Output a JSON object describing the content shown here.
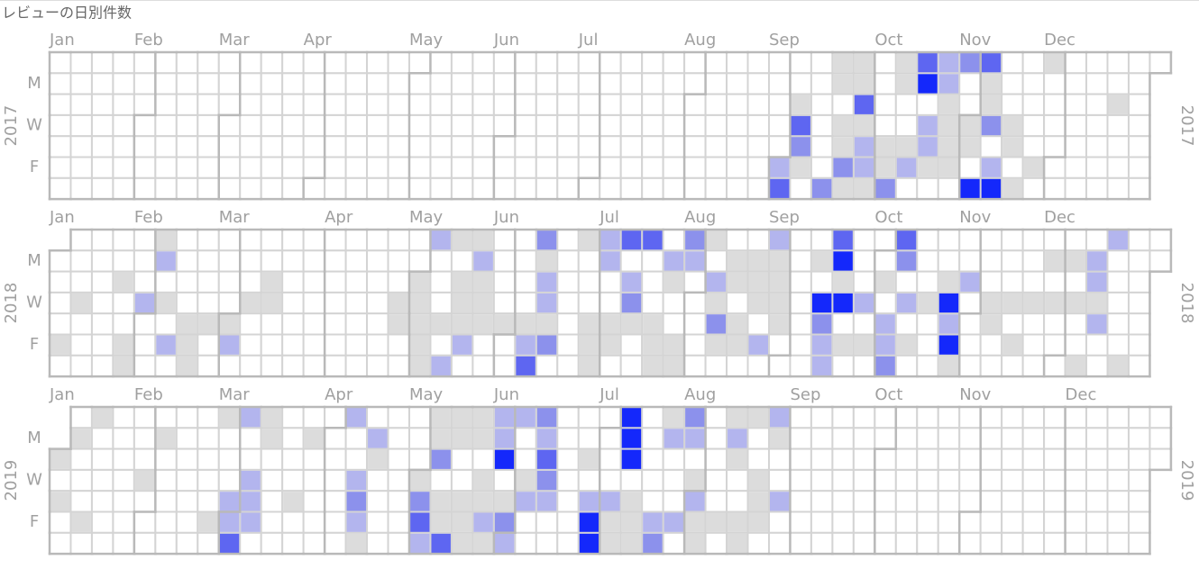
{
  "chart_data": {
    "type": "calendar-heatmap",
    "title": "レビューの日別件数",
    "months": [
      "Jan",
      "Feb",
      "Mar",
      "Apr",
      "May",
      "Jun",
      "Jul",
      "Aug",
      "Sep",
      "Oct",
      "Nov",
      "Dec"
    ],
    "weekday_labels": [
      "M",
      "W",
      "F"
    ],
    "colors": [
      "#dcdcdc",
      "#b3b5ee",
      "#8c91ec",
      "#5e66f1",
      "#1428fb"
    ],
    "series": [
      {
        "name": "2017",
        "x": [
          260,
          267,
          281,
          288,
          295,
          302,
          309,
          330,
          261,
          268,
          282,
          289,
          296,
          310,
          248,
          269,
          297,
          311,
          353,
          249,
          263,
          270,
          291,
          298,
          305,
          312,
          319,
          250,
          264,
          271,
          278,
          285,
          292,
          299,
          306,
          320,
          244,
          251,
          265,
          272,
          279,
          286,
          293,
          300,
          314,
          328,
          245,
          259,
          266,
          273,
          280,
          308,
          315,
          322
        ],
        "values": [
          1,
          1,
          1,
          4,
          2,
          3,
          4,
          1,
          1,
          1,
          1,
          5,
          2,
          1,
          1,
          4,
          1,
          1,
          1,
          4,
          1,
          1,
          2,
          1,
          1,
          3,
          1,
          3,
          1,
          2,
          1,
          1,
          2,
          1,
          1,
          1,
          2,
          1,
          3,
          2,
          1,
          2,
          1,
          1,
          2,
          1,
          4,
          3,
          1,
          1,
          3,
          5,
          5,
          1
        ]
      },
      {
        "name": "2018",
        "x": [
          35,
          126,
          133,
          140,
          161,
          175,
          182,
          189,
          196,
          210,
          217,
          238,
          259,
          280,
          350,
          36,
          141,
          162,
          183,
          204,
          211,
          225,
          232,
          239,
          253,
          260,
          281,
          330,
          337,
          344,
          23,
          72,
          121,
          135,
          142,
          163,
          191,
          205,
          219,
          226,
          233,
          240,
          261,
          275,
          296,
          303,
          345,
          10,
          31,
          38,
          66,
          73,
          115,
          122,
          136,
          143,
          164,
          192,
          220,
          234,
          241,
          255,
          262,
          269,
          283,
          290,
          297,
          311,
          318,
          325,
          332,
          339,
          346,
          46,
          53,
          60,
          116,
          123,
          130,
          137,
          144,
          151,
          158,
          165,
          179,
          186,
          193,
          200,
          221,
          228,
          242,
          256,
          277,
          298,
          312,
          347,
          5,
          26,
          40,
          47,
          61,
          124,
          138,
          159,
          166,
          180,
          187,
          201,
          208,
          222,
          229,
          236,
          257,
          264,
          271,
          278,
          285,
          299,
          320,
          27,
          48,
          125,
          132,
          160,
          181,
          202,
          209,
          258,
          279,
          300,
          342,
          356
        ],
        "values": [
          1,
          2,
          1,
          1,
          3,
          1,
          2,
          4,
          4,
          3,
          1,
          2,
          4,
          4,
          2,
          2,
          2,
          1,
          2,
          2,
          2,
          1,
          1,
          1,
          1,
          5,
          3,
          1,
          1,
          2,
          1,
          1,
          1,
          1,
          1,
          2,
          2,
          1,
          2,
          1,
          1,
          1,
          1,
          1,
          1,
          2,
          2,
          1,
          2,
          1,
          1,
          1,
          1,
          1,
          1,
          1,
          2,
          3,
          1,
          1,
          1,
          5,
          5,
          2,
          2,
          1,
          5,
          1,
          1,
          1,
          1,
          1,
          1,
          1,
          1,
          1,
          1,
          1,
          1,
          1,
          1,
          1,
          1,
          1,
          1,
          1,
          1,
          1,
          3,
          1,
          1,
          3,
          2,
          2,
          1,
          2,
          1,
          1,
          2,
          1,
          2,
          1,
          2,
          2,
          3,
          1,
          1,
          1,
          1,
          1,
          1,
          2,
          2,
          1,
          1,
          2,
          1,
          5,
          1,
          1,
          1,
          1,
          2,
          4,
          1,
          1,
          1,
          2,
          3,
          1,
          1,
          1
        ]
      },
      {
        "name": "2019",
        "x": [
          13,
          55,
          62,
          69,
          97,
          125,
          132,
          139,
          146,
          153,
          160,
          188,
          202,
          209,
          223,
          230,
          237,
          7,
          35,
          70,
          84,
          105,
          126,
          133,
          140,
          147,
          161,
          189,
          203,
          210,
          224,
          238,
          1,
          106,
          127,
          148,
          162,
          176,
          190,
          225,
          30,
          65,
          100,
          121,
          142,
          156,
          163,
          212,
          233,
          3,
          59,
          66,
          80,
          101,
          122,
          129,
          136,
          143,
          150,
          157,
          164,
          178,
          185,
          192,
          213,
          234,
          241,
          53,
          60,
          67,
          102,
          123,
          130,
          137,
          144,
          151,
          179,
          186,
          193,
          200,
          207,
          214,
          221,
          228,
          235,
          11,
          61,
          103,
          124,
          131,
          138,
          145,
          152,
          180,
          187,
          194,
          201,
          215,
          229
        ],
        "values": [
          1,
          1,
          2,
          1,
          2,
          1,
          1,
          1,
          2,
          2,
          3,
          5,
          1,
          3,
          1,
          1,
          2,
          1,
          1,
          1,
          1,
          2,
          1,
          1,
          1,
          2,
          2,
          5,
          2,
          2,
          2,
          1,
          1,
          1,
          3,
          5,
          4,
          1,
          5,
          1,
          1,
          2,
          2,
          1,
          1,
          1,
          3,
          1,
          1,
          1,
          2,
          2,
          1,
          3,
          3,
          1,
          1,
          1,
          1,
          2,
          2,
          2,
          2,
          1,
          2,
          1,
          2,
          1,
          2,
          2,
          2,
          4,
          1,
          1,
          2,
          3,
          5,
          1,
          1,
          2,
          2,
          1,
          1,
          1,
          1,
          1,
          4,
          1,
          2,
          4,
          1,
          1,
          2,
          5,
          1,
          1,
          3,
          1,
          1
        ]
      }
    ]
  }
}
